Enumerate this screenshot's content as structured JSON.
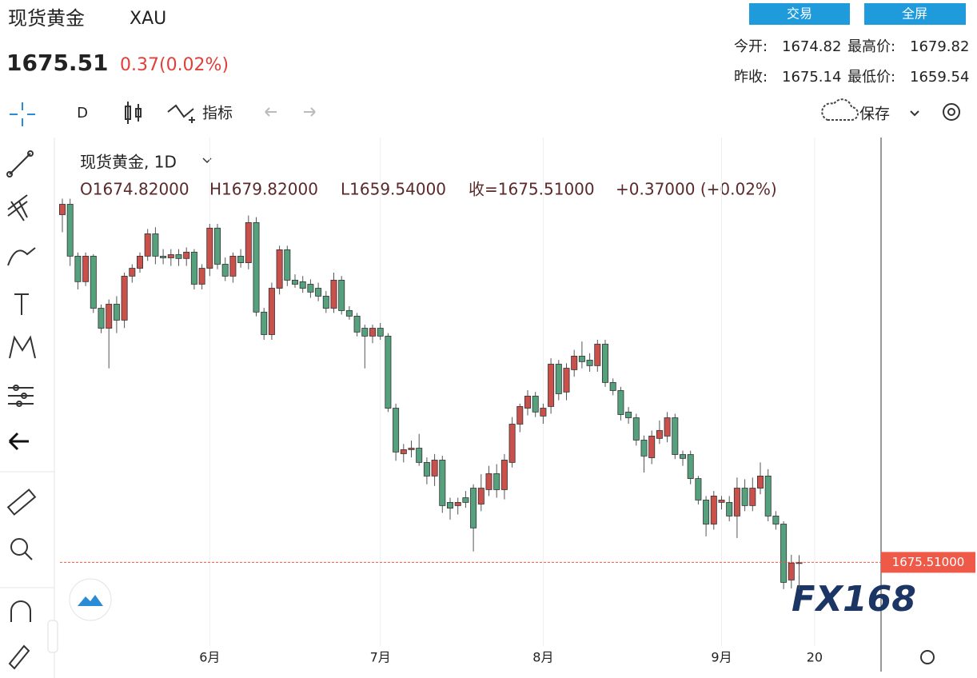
{
  "header": {
    "title": "现货黄金",
    "symbol": "XAU",
    "price": "1675.51",
    "change": "0.37(0.02%)",
    "buttons": [
      "交易",
      "全屏"
    ],
    "stats": [
      {
        "label": "今开:",
        "value": "1674.82"
      },
      {
        "label": "最高价:",
        "value": "1679.82"
      },
      {
        "label": "昨收:",
        "value": "1675.14"
      },
      {
        "label": "最低价:",
        "value": "1659.54"
      }
    ]
  },
  "toolbar": {
    "interval": "D",
    "indicators": "指标",
    "save": "保存"
  },
  "watermark": "FX168",
  "chart_data": {
    "type": "candlestick",
    "legend": {
      "name": "现货黄金, 1D",
      "values": [
        "O1674.82000",
        "H1679.82000",
        "L1659.54000",
        "收=1675.51000",
        "+0.37000 (+0.02%)"
      ]
    },
    "categories": [
      null,
      null,
      null,
      null,
      null,
      null,
      null,
      null,
      null,
      null,
      null,
      null,
      null,
      null,
      null,
      null,
      null,
      null,
      null,
      "6月",
      null,
      null,
      null,
      null,
      null,
      null,
      null,
      null,
      null,
      null,
      null,
      null,
      null,
      null,
      null,
      null,
      null,
      null,
      null,
      null,
      null,
      "7月",
      null,
      null,
      null,
      null,
      null,
      null,
      null,
      null,
      null,
      null,
      null,
      null,
      null,
      null,
      null,
      null,
      null,
      null,
      null,
      null,
      "8月",
      null,
      null,
      null,
      null,
      null,
      null,
      null,
      null,
      null,
      null,
      null,
      null,
      null,
      null,
      null,
      null,
      null,
      null,
      null,
      null,
      null,
      null,
      "9月",
      null,
      null,
      null,
      null,
      null,
      null,
      null,
      null,
      null,
      null,
      null,
      "20"
    ],
    "ohlc": [
      [
        1882.5,
        1892,
        1872,
        1888.7
      ],
      [
        1888.7,
        1892,
        1852,
        1857.8
      ],
      [
        1857.8,
        1860,
        1838,
        1842.6
      ],
      [
        1842.6,
        1860,
        1840,
        1857.8
      ],
      [
        1857.8,
        1859,
        1824,
        1826.8
      ],
      [
        1826.8,
        1829,
        1812,
        1814.9
      ],
      [
        1814.9,
        1832,
        1791,
        1829.2
      ],
      [
        1829.2,
        1834,
        1812,
        1819.7
      ],
      [
        1819.7,
        1848,
        1815,
        1845.9
      ],
      [
        1845.9,
        1853,
        1842,
        1850.6
      ],
      [
        1850.6,
        1860,
        1848,
        1857.8
      ],
      [
        1857.8,
        1874,
        1855,
        1871.1
      ],
      [
        1871.1,
        1875,
        1853,
        1857.8
      ],
      [
        1857.8,
        1862,
        1853,
        1856.8
      ],
      [
        1856.8,
        1862,
        1852,
        1858.7
      ],
      [
        1858.7,
        1862,
        1852,
        1856.4
      ],
      [
        1856.4,
        1863,
        1852,
        1860.2
      ],
      [
        1860.2,
        1862,
        1838,
        1841.1
      ],
      [
        1841.1,
        1853,
        1838,
        1850.6
      ],
      [
        1850.6,
        1877,
        1846,
        1874.5
      ],
      [
        1874.5,
        1877,
        1850,
        1853.0
      ],
      [
        1853.0,
        1857,
        1843,
        1845.9
      ],
      [
        1845.9,
        1860,
        1842,
        1857.8
      ],
      [
        1857.8,
        1862,
        1851,
        1853.9
      ],
      [
        1853.9,
        1882,
        1850,
        1877.8
      ],
      [
        1877.8,
        1881,
        1822,
        1824.5
      ],
      [
        1824.5,
        1827,
        1808,
        1811.1
      ],
      [
        1811.1,
        1842,
        1808,
        1838.7
      ],
      [
        1838.7,
        1864,
        1835,
        1861.6
      ],
      [
        1861.6,
        1864,
        1840,
        1843.5
      ],
      [
        1843.5,
        1847,
        1839,
        1841.1
      ],
      [
        1842.6,
        1846,
        1836,
        1838.7
      ],
      [
        1841.1,
        1844,
        1833,
        1836.4
      ],
      [
        1838.7,
        1842,
        1831,
        1834.0
      ],
      [
        1834.0,
        1837,
        1824,
        1826.8
      ],
      [
        1826.8,
        1848,
        1824,
        1843.5
      ],
      [
        1843.5,
        1846,
        1823,
        1825.4
      ],
      [
        1825.4,
        1828,
        1820,
        1822.1
      ],
      [
        1822.1,
        1824,
        1810,
        1812.6
      ],
      [
        1814.9,
        1817,
        1791,
        1810.2
      ],
      [
        1810.2,
        1817,
        1806,
        1814.9
      ],
      [
        1814.9,
        1818,
        1808,
        1810.2
      ],
      [
        1810.2,
        1812,
        1765,
        1767.3
      ],
      [
        1767.3,
        1770,
        1736,
        1741.2
      ],
      [
        1740.2,
        1746,
        1735,
        1742.6
      ],
      [
        1742.6,
        1748,
        1738,
        1743.5
      ],
      [
        1743.5,
        1752,
        1733,
        1735.0
      ],
      [
        1735.0,
        1738,
        1722,
        1726.9
      ],
      [
        1726.9,
        1740,
        1721,
        1736.4
      ],
      [
        1736.4,
        1739,
        1705,
        1709.3
      ],
      [
        1711.2,
        1714,
        1701,
        1707.8
      ],
      [
        1709.3,
        1714,
        1704,
        1711.2
      ],
      [
        1714.0,
        1718,
        1708,
        1711.2
      ],
      [
        1719.7,
        1722,
        1682,
        1696.0
      ],
      [
        1710.2,
        1728,
        1706,
        1719.7
      ],
      [
        1718.8,
        1733,
        1715,
        1728.3
      ],
      [
        1728.3,
        1734,
        1714,
        1718.8
      ],
      [
        1718.8,
        1740,
        1713,
        1736.4
      ],
      [
        1735.0,
        1762,
        1732,
        1757.8
      ],
      [
        1757.8,
        1770,
        1753,
        1768.3
      ],
      [
        1767.3,
        1778,
        1763,
        1774.5
      ],
      [
        1774.5,
        1777,
        1762,
        1765.0
      ],
      [
        1762.6,
        1770,
        1758,
        1767.3
      ],
      [
        1768.3,
        1797,
        1764,
        1793.5
      ],
      [
        1793.5,
        1796,
        1772,
        1775.9
      ],
      [
        1776.9,
        1794,
        1772,
        1791.1
      ],
      [
        1790.2,
        1802,
        1786,
        1798.3
      ],
      [
        1798.3,
        1807,
        1791,
        1795.0
      ],
      [
        1795.9,
        1800,
        1789,
        1792.6
      ],
      [
        1792.6,
        1808,
        1789,
        1805.4
      ],
      [
        1805.4,
        1808,
        1780,
        1782.6
      ],
      [
        1782.6,
        1785,
        1775,
        1777.8
      ],
      [
        1777.8,
        1780,
        1760,
        1763.5
      ],
      [
        1765.0,
        1768,
        1758,
        1761.6
      ],
      [
        1761.6,
        1764,
        1745,
        1748.3
      ],
      [
        1748.3,
        1751,
        1729,
        1738.8
      ],
      [
        1737.8,
        1754,
        1734,
        1750.7
      ],
      [
        1749.3,
        1760,
        1746,
        1754.0
      ],
      [
        1750.7,
        1765,
        1747,
        1761.6
      ],
      [
        1761.6,
        1764,
        1737,
        1739.7
      ],
      [
        1739.7,
        1742,
        1733,
        1737.4
      ],
      [
        1739.7,
        1742,
        1722,
        1725.4
      ],
      [
        1725.4,
        1727,
        1710,
        1712.6
      ],
      [
        1712.6,
        1715,
        1691,
        1698.3
      ],
      [
        1698.3,
        1718,
        1695,
        1715.0
      ],
      [
        1711.2,
        1715,
        1707,
        1712.6
      ],
      [
        1711.2,
        1715,
        1700,
        1703.1
      ],
      [
        1703.1,
        1726,
        1690,
        1719.7
      ],
      [
        1719.7,
        1725,
        1706,
        1709.3
      ],
      [
        1709.3,
        1726,
        1706,
        1719.7
      ],
      [
        1719.7,
        1735,
        1716,
        1726.9
      ],
      [
        1726.9,
        1731,
        1700,
        1703.1
      ],
      [
        1703.1,
        1706,
        1695,
        1698.3
      ],
      [
        1698.3,
        1700,
        1659.6,
        1663.6
      ],
      [
        1665.0,
        1680,
        1660,
        1675.14
      ],
      [
        1674.82,
        1679.82,
        1659.54,
        1675.51
      ],
      null,
      null
    ],
    "ylim": [
      1620,
      1927
    ],
    "up_color": "#c9504b",
    "down_color": "#55a07d",
    "grid": true,
    "last_price": {
      "value": 1675.51,
      "label": "1675.51000"
    },
    "last_price_color": "#ef5a48"
  }
}
